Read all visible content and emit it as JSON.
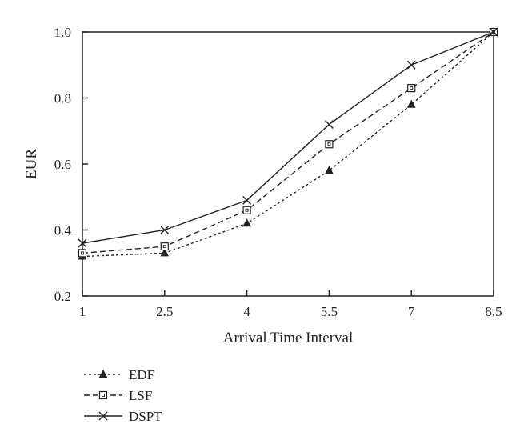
{
  "chart_data": {
    "type": "line",
    "title": "",
    "xlabel": "Arrival Time Interval",
    "ylabel": "EUR",
    "x": [
      1,
      2.5,
      4,
      5.5,
      7,
      8.5
    ],
    "x_tick_labels": [
      "1",
      "2.5",
      "4",
      "5.5",
      "7",
      "8.5"
    ],
    "y_tick_labels": [
      "0.2",
      "0.4",
      "0.6",
      "0.8",
      "1.0"
    ],
    "xlim": [
      1,
      8.5
    ],
    "ylim": [
      0.2,
      1.0
    ],
    "grid": false,
    "legend_position": "bottom-left",
    "series": [
      {
        "name": "EDF",
        "marker": "filled-triangle",
        "line_style": "dotted",
        "values": [
          0.32,
          0.33,
          0.42,
          0.58,
          0.78,
          1.0
        ]
      },
      {
        "name": "LSF",
        "marker": "open-square",
        "line_style": "dashed",
        "values": [
          0.33,
          0.35,
          0.46,
          0.66,
          0.83,
          1.0
        ]
      },
      {
        "name": "DSPT",
        "marker": "x",
        "line_style": "solid",
        "values": [
          0.36,
          0.4,
          0.49,
          0.72,
          0.9,
          1.0
        ]
      }
    ],
    "line_color": "#222222"
  }
}
